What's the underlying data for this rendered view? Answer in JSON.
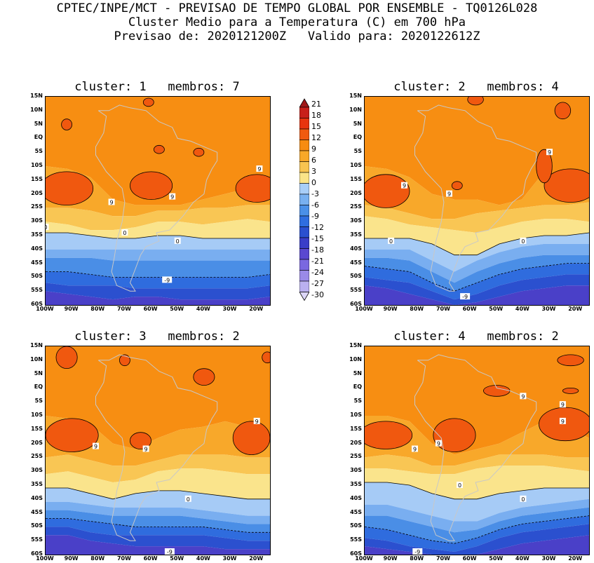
{
  "header": {
    "line1": "CPTEC/INPE/MCT - PREVISAO DE TEMPO GLOBAL POR ENSEMBLE - TQ0126L028",
    "line2": "Cluster Medio para a Temperatura (C) em 700 hPa",
    "line3": "Previsao de: 2020121200Z   Valido para: 2020122612Z"
  },
  "lat_labels": [
    "15N",
    "10N",
    "5N",
    "EQ",
    "5S",
    "10S",
    "15S",
    "20S",
    "25S",
    "30S",
    "35S",
    "40S",
    "45S",
    "50S",
    "55S",
    "60S"
  ],
  "lon_labels": [
    "100W",
    "90W",
    "80W",
    "70W",
    "60W",
    "50W",
    "40W",
    "30W",
    "20W"
  ],
  "panels": [
    {
      "title": "cluster: 1   membros: 7",
      "labels": [
        "9",
        "9",
        "9",
        "0",
        "0",
        "0",
        "-9"
      ]
    },
    {
      "title": "cluster: 2   membros: 4",
      "labels": [
        "9",
        "9",
        "9",
        "0",
        "0",
        "-9"
      ]
    },
    {
      "title": "cluster: 3   membros: 2",
      "labels": [
        "9",
        "9",
        "9",
        "0",
        "-9"
      ]
    },
    {
      "title": "cluster: 4   membros: 2",
      "labels": [
        "9",
        "9",
        "9",
        "9",
        "9",
        "0",
        "0",
        "-9"
      ]
    }
  ],
  "colorbar": {
    "levels": [
      "21",
      "18",
      "15",
      "12",
      "9",
      "6",
      "3",
      "0",
      "-3",
      "-6",
      "-9",
      "-12",
      "-15",
      "-18",
      "-21",
      "-24",
      "-27",
      "-30"
    ],
    "colors": [
      "#a01818",
      "#c8201a",
      "#e8340e",
      "#f05a10",
      "#f78c10",
      "#f8a828",
      "#f8c450",
      "#fae488",
      "#a8cef8",
      "#78b0f0",
      "#4a90e8",
      "#2f6ee0",
      "#2a50d0",
      "#3a3ec8",
      "#5a48d0",
      "#7a68e0",
      "#9a8ae8",
      "#bab0f0",
      "#dcd6f8"
    ]
  }
}
